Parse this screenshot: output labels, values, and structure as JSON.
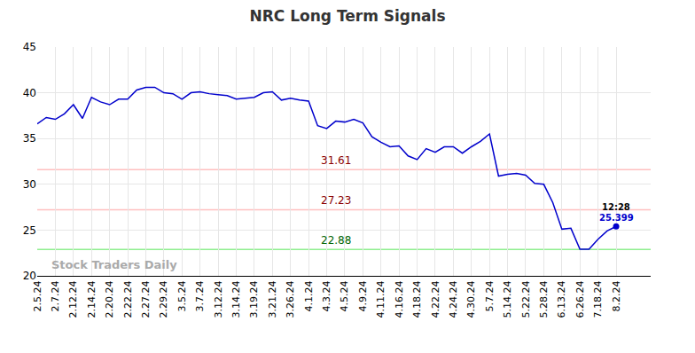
{
  "chart_data": {
    "type": "line",
    "title": "NRC Long Term Signals",
    "categories": [
      "2.5.24",
      null,
      "2.7.24",
      null,
      "2.12.24",
      null,
      "2.14.24",
      null,
      "2.20.24",
      null,
      "2.22.24",
      null,
      "2.27.24",
      null,
      "2.29.24",
      null,
      "3.5.24",
      null,
      "3.7.24",
      null,
      "3.12.24",
      null,
      "3.14.24",
      null,
      "3.19.24",
      null,
      "3.21.24",
      null,
      "3.26.24",
      null,
      "4.1.24",
      null,
      "4.3.24",
      null,
      "4.5.24",
      null,
      "4.9.24",
      null,
      "4.11.24",
      null,
      "4.16.24",
      null,
      "4.18.24",
      null,
      "4.22.24",
      null,
      "4.24.24",
      null,
      "4.30.24",
      null,
      "5.7.24",
      null,
      "5.14.24",
      null,
      "5.22.24",
      null,
      "5.28.24",
      null,
      "6.13.24",
      null,
      "6.26.24",
      null,
      "7.18.24",
      null,
      "8.2.24"
    ],
    "values": [
      36.6,
      37.3,
      37.1,
      37.7,
      38.7,
      37.2,
      39.5,
      39.0,
      38.7,
      39.3,
      39.3,
      40.3,
      40.6,
      40.6,
      40.0,
      39.9,
      39.3,
      40.0,
      40.1,
      39.9,
      39.8,
      39.7,
      39.3,
      39.4,
      39.5,
      40.0,
      40.1,
      39.2,
      39.4,
      39.2,
      39.1,
      36.4,
      36.1,
      36.9,
      36.8,
      37.1,
      36.7,
      35.2,
      34.6,
      34.1,
      34.2,
      33.1,
      32.7,
      33.9,
      33.5,
      34.1,
      34.1,
      33.4,
      34.1,
      34.7,
      35.5,
      30.9,
      31.1,
      31.2,
      31.0,
      30.1,
      30.0,
      28.0,
      25.1,
      25.2,
      22.9,
      22.9,
      24.0,
      24.9,
      25.399
    ],
    "color": "#0000cc",
    "ylim": [
      20,
      45
    ],
    "yticks": [
      20,
      25,
      30,
      35,
      40,
      45
    ],
    "grid": true,
    "reference_lines": [
      {
        "value": 31.61,
        "color": "#ffc0c0",
        "label_color": "#8b0000"
      },
      {
        "value": 27.23,
        "color": "#ffc0c0",
        "label_color": "#8b0000"
      },
      {
        "value": 22.88,
        "color": "#90ee90",
        "label_color": "#006400"
      }
    ],
    "last_point_time": "12:28",
    "watermark": "Stock Traders Daily"
  }
}
